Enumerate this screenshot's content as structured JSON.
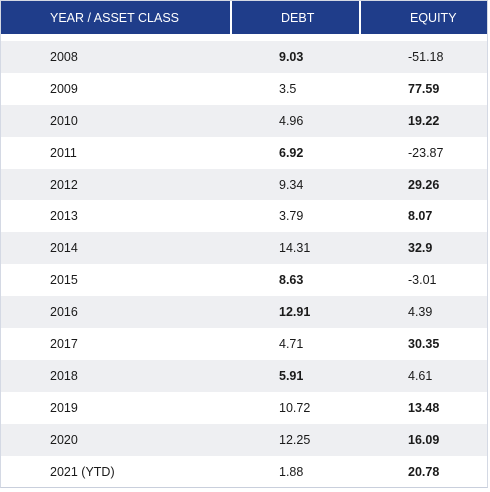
{
  "chart_data": {
    "type": "table",
    "columns": [
      "YEAR / ASSET CLASS",
      "DEBT",
      "EQUITY"
    ],
    "rows": [
      {
        "year": "2008",
        "debt": "9.03",
        "equity": "-51.18",
        "bold": "debt"
      },
      {
        "year": "2009",
        "debt": "3.5",
        "equity": "77.59",
        "bold": "equity"
      },
      {
        "year": "2010",
        "debt": "4.96",
        "equity": "19.22",
        "bold": "equity"
      },
      {
        "year": "2011",
        "debt": "6.92",
        "equity": "-23.87",
        "bold": "debt"
      },
      {
        "year": "2012",
        "debt": "9.34",
        "equity": "29.26",
        "bold": "equity"
      },
      {
        "year": "2013",
        "debt": "3.79",
        "equity": "8.07",
        "bold": "equity"
      },
      {
        "year": "2014",
        "debt": "14.31",
        "equity": "32.9",
        "bold": "equity"
      },
      {
        "year": "2015",
        "debt": "8.63",
        "equity": "-3.01",
        "bold": "debt"
      },
      {
        "year": "2016",
        "debt": "12.91",
        "equity": "4.39",
        "bold": "debt"
      },
      {
        "year": "2017",
        "debt": "4.71",
        "equity": "30.35",
        "bold": "equity"
      },
      {
        "year": "2018",
        "debt": "5.91",
        "equity": "4.61",
        "bold": "debt"
      },
      {
        "year": "2019",
        "debt": "10.72",
        "equity": "13.48",
        "bold": "equity"
      },
      {
        "year": "2020",
        "debt": "12.25",
        "equity": "16.09",
        "bold": "equity"
      },
      {
        "year": "2021 (YTD)",
        "debt": "1.88",
        "equity": "20.78",
        "bold": "equity"
      }
    ]
  },
  "colors": {
    "header_background": "#1f3d8a",
    "header_text": "#ffffff",
    "stripe": "#eeeff2"
  }
}
